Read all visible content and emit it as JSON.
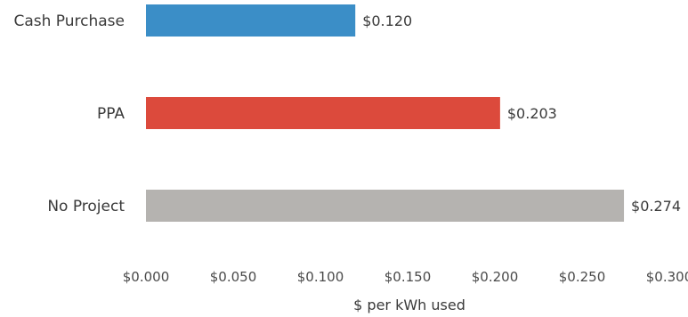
{
  "chart_data": {
    "type": "bar",
    "orientation": "horizontal",
    "categories": [
      "Cash Purchase",
      "PPA",
      "No Project"
    ],
    "values": [
      0.12,
      0.203,
      0.274
    ],
    "value_labels": [
      "$0.120",
      "$0.203",
      "$0.274"
    ],
    "colors": [
      "#3b8ec7",
      "#dc4a3c",
      "#b5b3b0"
    ],
    "xlabel": "$ per kWh used",
    "ylabel": "",
    "xlim": [
      0,
      0.3
    ],
    "x_ticks": [
      0,
      0.05,
      0.1,
      0.15,
      0.2,
      0.25,
      0.3
    ],
    "x_tick_labels": [
      "$0.000",
      "$0.050",
      "$0.100",
      "$0.150",
      "$0.200",
      "$0.250",
      "$0.300"
    ],
    "grid": false,
    "legend": "none"
  }
}
